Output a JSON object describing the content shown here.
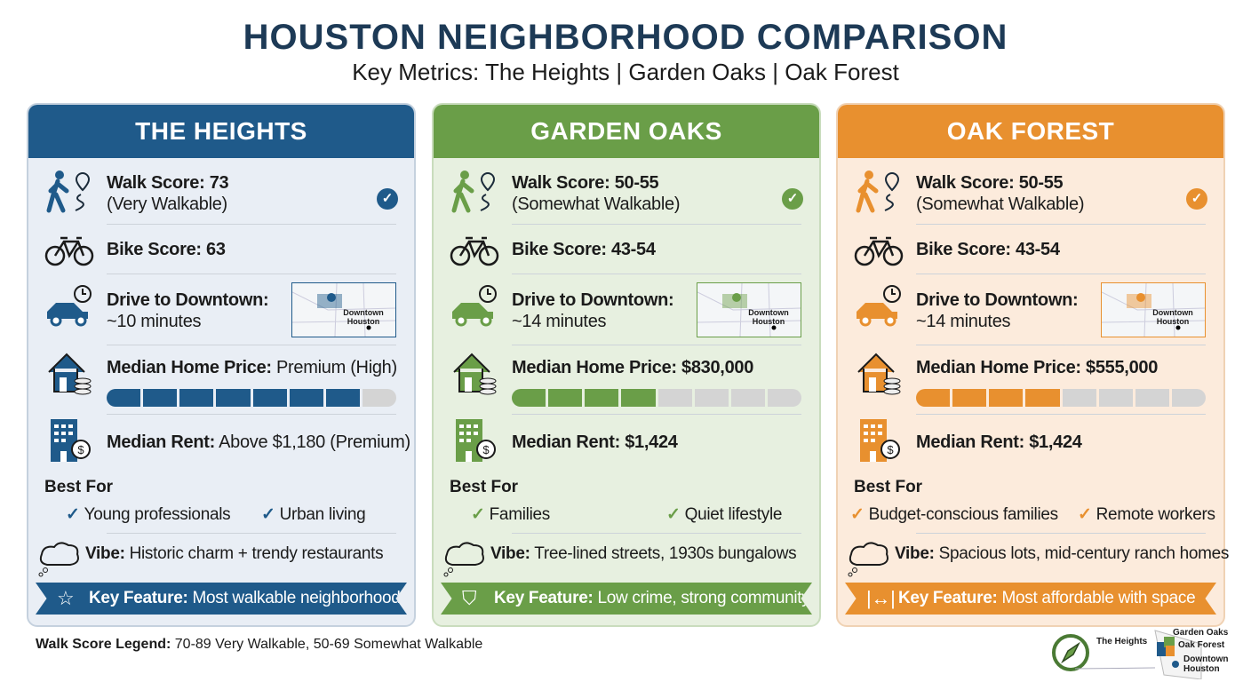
{
  "header": {
    "title": "HOUSTON NEIGHBORHOOD COMPARISON",
    "subtitle": "Key Metrics: The Heights | Garden Oaks | Oak Forest"
  },
  "colors": {
    "heights": "#1f5a8a",
    "garden_oaks": "#6a9e48",
    "oak_forest": "#e8902f"
  },
  "cards": [
    {
      "name": "THE HEIGHTS",
      "color": "#1f5a8a",
      "bg": "#e9eef5",
      "border": "#c5d1de",
      "walk_label": "Walk Score: 73",
      "walk_desc": "(Very Walkable)",
      "bike": "Bike Score: 63",
      "drive_label": "Drive to Downtown:",
      "drive_value": "~10 minutes",
      "map_label": "Downtown Houston",
      "price_label": "Median Home Price:",
      "price_value": " Premium (High)",
      "price_level": 7,
      "price_max": 8,
      "rent_label": "Median Rent:",
      "rent_value": " Above $1,180 (Premium)",
      "best_for_label": "Best For",
      "best_for": [
        "Young professionals",
        "Urban living"
      ],
      "vibe_label": "Vibe:",
      "vibe_value": " Historic charm + trendy restaurants",
      "key_label": "Key Feature:",
      "key_value": " Most walkable neighborhood",
      "key_icon": "star-icon",
      "key_glyph": "☆"
    },
    {
      "name": "GARDEN OAKS",
      "color": "#6a9e48",
      "bg": "#e7f0e0",
      "border": "#c9dcbd",
      "walk_label": "Walk Score: 50-55",
      "walk_desc": "(Somewhat Walkable)",
      "bike": "Bike Score: 43-54",
      "drive_label": "Drive to Downtown:",
      "drive_value": "~14 minutes",
      "map_label": "Downtown Houston",
      "price_label": "Median Home Price: $830,000",
      "price_value": "",
      "price_level": 4,
      "price_max": 8,
      "rent_label": "Median Rent: $1,424",
      "rent_value": "",
      "best_for_label": "Best For",
      "best_for": [
        "Families",
        "Quiet lifestyle"
      ],
      "vibe_label": "Vibe:",
      "vibe_value": " Tree-lined streets, 1930s bungalows",
      "key_label": "Key Feature:",
      "key_value": " Low crime, strong community",
      "key_icon": "shield-check-icon",
      "key_glyph": "⛉"
    },
    {
      "name": "OAK FOREST",
      "color": "#e8902f",
      "bg": "#fcebdc",
      "border": "#f0d2b4",
      "walk_label": "Walk Score: 50-55",
      "walk_desc": "(Somewhat Walkable)",
      "bike": "Bike Score: 43-54",
      "drive_label": "Drive to Downtown:",
      "drive_value": "~14 minutes",
      "map_label": "Downtown Houston",
      "price_label": "Median Home Price: $555,000",
      "price_value": "",
      "price_level": 4,
      "price_max": 8,
      "rent_label": "Median Rent: $1,424",
      "rent_value": "",
      "best_for_label": "Best For",
      "best_for": [
        "Budget-conscious families",
        "Remote workers"
      ],
      "vibe_label": "Vibe:",
      "vibe_value": " Spacious lots, mid-century ranch homes",
      "key_label": "Key Feature:",
      "key_value": " Most affordable with space",
      "key_icon": "arrows-width-icon",
      "key_glyph": "|↔|"
    }
  ],
  "legend": {
    "label": "Walk Score Legend:",
    "value": " 70-89 Very Walkable, 50-69 Somewhat Walkable"
  },
  "locator": {
    "heights": "The Heights",
    "garden_oaks": "Garden Oaks",
    "oak_forest": "Oak Forest",
    "downtown": "Downtown Houston"
  }
}
